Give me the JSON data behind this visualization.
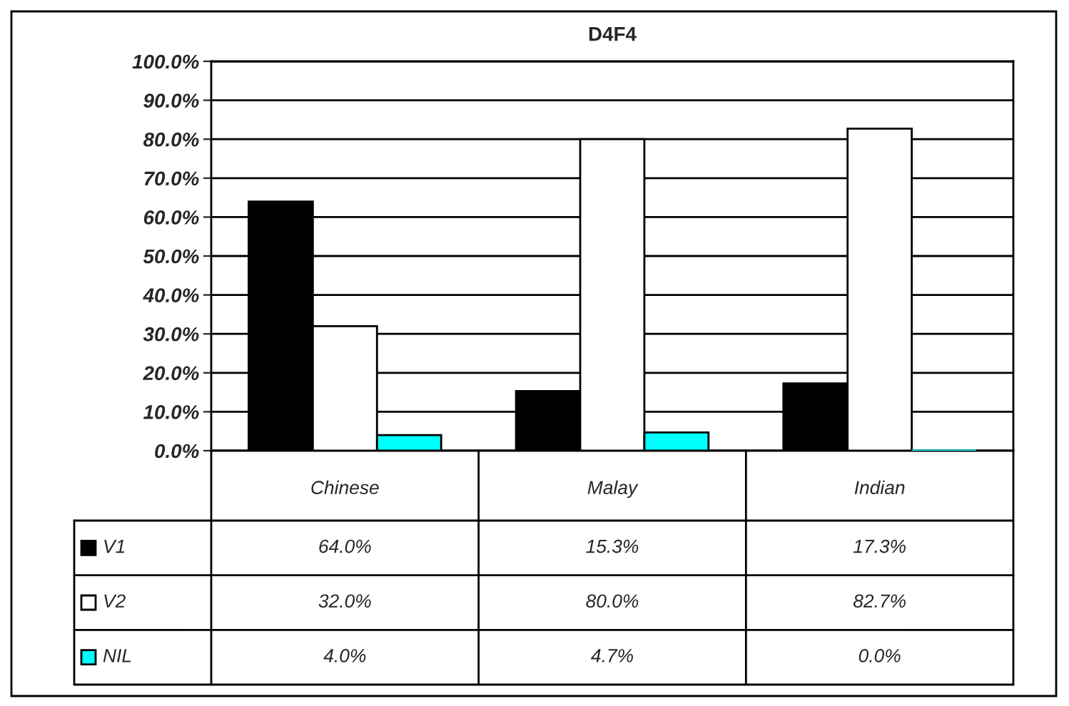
{
  "chart_data": {
    "type": "bar",
    "title": "D4F4",
    "categories": [
      "Chinese",
      "Malay",
      "Indian"
    ],
    "series": [
      {
        "name": "V1",
        "color": "#000000",
        "values": [
          64.0,
          15.3,
          17.3
        ],
        "value_labels": [
          "64.0%",
          "15.3%",
          "17.3%"
        ]
      },
      {
        "name": "V2",
        "color": "#ffffff",
        "values": [
          32.0,
          80.0,
          82.7
        ],
        "value_labels": [
          "32.0%",
          "80.0%",
          "82.7%"
        ]
      },
      {
        "name": "NIL",
        "color": "#00ffff",
        "values": [
          4.0,
          4.7,
          0.0
        ],
        "value_labels": [
          "4.0%",
          "4.7%",
          "0.0%"
        ]
      }
    ],
    "ylim": [
      0,
      100
    ],
    "yticks": [
      {
        "value": 0,
        "label": "0.0%"
      },
      {
        "value": 10,
        "label": "10.0%"
      },
      {
        "value": 20,
        "label": "20.0%"
      },
      {
        "value": 30,
        "label": "30.0%"
      },
      {
        "value": 40,
        "label": "40.0%"
      },
      {
        "value": 50,
        "label": "50.0%"
      },
      {
        "value": 60,
        "label": "60.0%"
      },
      {
        "value": 70,
        "label": "70.0%"
      },
      {
        "value": 80,
        "label": "80.0%"
      },
      {
        "value": 90,
        "label": "90.0%"
      },
      {
        "value": 100,
        "label": "100.0%"
      }
    ],
    "grid": "y",
    "legend": "bottom left"
  }
}
